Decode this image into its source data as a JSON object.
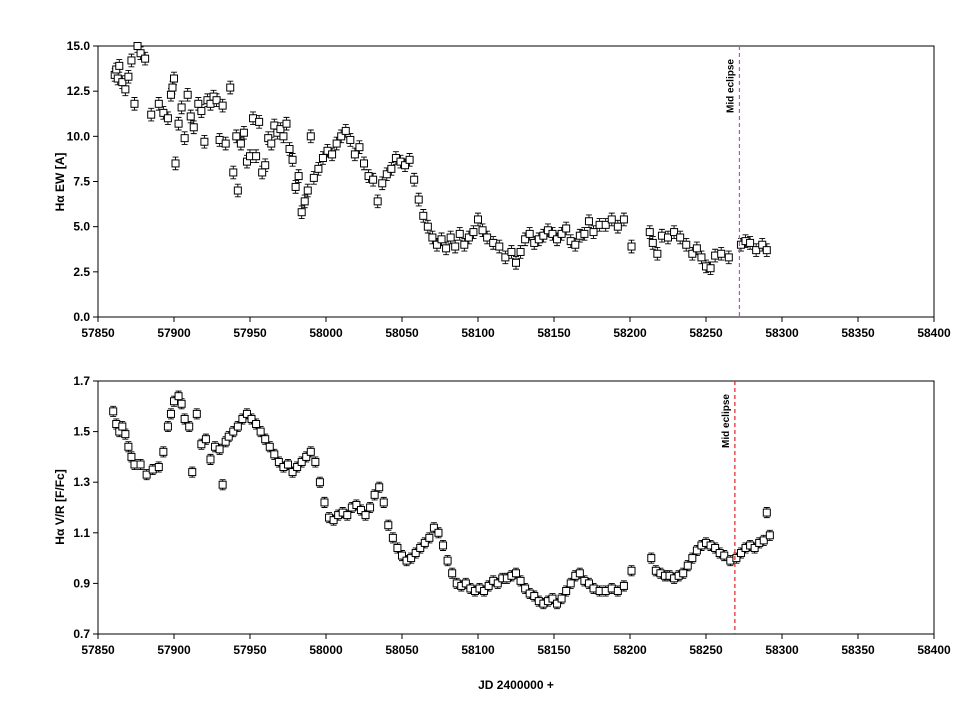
{
  "chart_data": [
    {
      "type": "scatter",
      "ylabel_main": "Hα EW [A]",
      "ylabel": "H",
      "ylabel_greek": "α",
      "ylabel_rest": " EW [A]",
      "xlim": [
        57850,
        58400
      ],
      "ylim": [
        0.0,
        15.0
      ],
      "xticks": [
        57850,
        57900,
        57950,
        58000,
        58050,
        58100,
        58150,
        58200,
        58250,
        58300,
        58350,
        58400
      ],
      "yticks": [
        0.0,
        2.5,
        5.0,
        7.5,
        10.0,
        12.5,
        15.0
      ],
      "ytick_labels": [
        "0.0",
        "2.5",
        "5.0",
        "7.5",
        "10.0",
        "12.5",
        "15.0"
      ],
      "marker": "open-square",
      "error_bars": true,
      "annotation": {
        "text": "Mid eclipse",
        "x": 58272,
        "line_color": "#cc44cc",
        "line_style": "dashed"
      },
      "points": [
        [
          57861,
          13.4
        ],
        [
          57862,
          13.7
        ],
        [
          57863,
          13.2
        ],
        [
          57864,
          13.9
        ],
        [
          57866,
          13.0
        ],
        [
          57868,
          12.6
        ],
        [
          57870,
          13.3
        ],
        [
          57872,
          14.2
        ],
        [
          57874,
          11.8
        ],
        [
          57876,
          15.0
        ],
        [
          57878,
          14.6
        ],
        [
          57881,
          14.3
        ],
        [
          57885,
          11.2
        ],
        [
          57890,
          11.8
        ],
        [
          57893,
          11.3
        ],
        [
          57896,
          11.0
        ],
        [
          57898,
          12.3
        ],
        [
          57899,
          12.7
        ],
        [
          57900,
          13.2
        ],
        [
          57901,
          8.5
        ],
        [
          57903,
          10.7
        ],
        [
          57905,
          11.6
        ],
        [
          57907,
          9.9
        ],
        [
          57909,
          12.3
        ],
        [
          57911,
          11.1
        ],
        [
          57913,
          10.5
        ],
        [
          57916,
          11.8
        ],
        [
          57918,
          11.4
        ],
        [
          57920,
          9.7
        ],
        [
          57922,
          12.0
        ],
        [
          57924,
          11.8
        ],
        [
          57926,
          12.2
        ],
        [
          57928,
          12.0
        ],
        [
          57930,
          9.8
        ],
        [
          57932,
          11.7
        ],
        [
          57934,
          9.6
        ],
        [
          57937,
          12.7
        ],
        [
          57939,
          8.0
        ],
        [
          57941,
          10.0
        ],
        [
          57942,
          7.0
        ],
        [
          57944,
          9.6
        ],
        [
          57946,
          10.2
        ],
        [
          57948,
          8.6
        ],
        [
          57950,
          8.9
        ],
        [
          57952,
          11.0
        ],
        [
          57954,
          8.9
        ],
        [
          57956,
          10.8
        ],
        [
          57958,
          8.0
        ],
        [
          57960,
          8.4
        ],
        [
          57962,
          9.9
        ],
        [
          57964,
          9.6
        ],
        [
          57966,
          10.6
        ],
        [
          57968,
          10.2
        ],
        [
          57970,
          10.4
        ],
        [
          57972,
          10.0
        ],
        [
          57974,
          10.7
        ],
        [
          57976,
          9.3
        ],
        [
          57978,
          8.7
        ],
        [
          57980,
          7.2
        ],
        [
          57982,
          7.8
        ],
        [
          57984,
          5.8
        ],
        [
          57986,
          6.4
        ],
        [
          57988,
          7.0
        ],
        [
          57990,
          10.0
        ],
        [
          57992,
          7.7
        ],
        [
          57995,
          8.2
        ],
        [
          57998,
          8.8
        ],
        [
          58001,
          9.2
        ],
        [
          58004,
          9.0
        ],
        [
          58007,
          9.6
        ],
        [
          58010,
          10.0
        ],
        [
          58013,
          10.3
        ],
        [
          58016,
          9.8
        ],
        [
          58019,
          9.0
        ],
        [
          58022,
          9.4
        ],
        [
          58025,
          8.5
        ],
        [
          58028,
          7.8
        ],
        [
          58031,
          7.6
        ],
        [
          58034,
          6.4
        ],
        [
          58037,
          7.4
        ],
        [
          58040,
          7.9
        ],
        [
          58043,
          8.2
        ],
        [
          58046,
          8.8
        ],
        [
          58049,
          8.6
        ],
        [
          58052,
          8.4
        ],
        [
          58055,
          8.7
        ],
        [
          58058,
          7.6
        ],
        [
          58061,
          6.5
        ],
        [
          58064,
          5.6
        ],
        [
          58067,
          5.0
        ],
        [
          58070,
          4.4
        ],
        [
          58073,
          4.0
        ],
        [
          58076,
          4.3
        ],
        [
          58079,
          3.8
        ],
        [
          58082,
          4.4
        ],
        [
          58085,
          3.9
        ],
        [
          58088,
          4.6
        ],
        [
          58091,
          4.0
        ],
        [
          58094,
          4.4
        ],
        [
          58097,
          4.7
        ],
        [
          58100,
          5.4
        ],
        [
          58103,
          4.8
        ],
        [
          58106,
          4.4
        ],
        [
          58110,
          4.1
        ],
        [
          58114,
          3.9
        ],
        [
          58118,
          3.3
        ],
        [
          58122,
          3.6
        ],
        [
          58125,
          3.0
        ],
        [
          58128,
          3.6
        ],
        [
          58131,
          4.3
        ],
        [
          58134,
          4.6
        ],
        [
          58137,
          4.1
        ],
        [
          58140,
          4.3
        ],
        [
          58143,
          4.5
        ],
        [
          58146,
          4.8
        ],
        [
          58149,
          4.6
        ],
        [
          58152,
          4.3
        ],
        [
          58155,
          4.6
        ],
        [
          58158,
          4.9
        ],
        [
          58161,
          4.2
        ],
        [
          58164,
          4.0
        ],
        [
          58167,
          4.5
        ],
        [
          58170,
          4.6
        ],
        [
          58173,
          5.3
        ],
        [
          58176,
          4.7
        ],
        [
          58180,
          5.1
        ],
        [
          58184,
          5.1
        ],
        [
          58188,
          5.4
        ],
        [
          58192,
          5.0
        ],
        [
          58196,
          5.4
        ],
        [
          58201,
          3.9
        ],
        [
          58213,
          4.7
        ],
        [
          58215,
          4.1
        ],
        [
          58218,
          3.5
        ],
        [
          58221,
          4.5
        ],
        [
          58225,
          4.4
        ],
        [
          58229,
          4.7
        ],
        [
          58233,
          4.4
        ],
        [
          58237,
          4.0
        ],
        [
          58241,
          3.5
        ],
        [
          58244,
          3.8
        ],
        [
          58247,
          3.3
        ],
        [
          58250,
          2.8
        ],
        [
          58253,
          2.7
        ],
        [
          58256,
          3.4
        ],
        [
          58260,
          3.5
        ],
        [
          58265,
          3.3
        ],
        [
          58273,
          4.0
        ],
        [
          58276,
          4.2
        ],
        [
          58279,
          4.1
        ],
        [
          58283,
          3.7
        ],
        [
          58287,
          4.0
        ],
        [
          58290,
          3.7
        ]
      ]
    },
    {
      "type": "scatter",
      "ylabel_main": "Hα V/R [F/Fc]",
      "ylabel": "H",
      "ylabel_greek": "α",
      "ylabel_rest": " V/R [F/Fc]",
      "xlabel": "JD 2400000 +",
      "xlim": [
        57850,
        58400
      ],
      "ylim": [
        0.7,
        1.7
      ],
      "xticks": [
        57850,
        57900,
        57950,
        58000,
        58050,
        58100,
        58150,
        58200,
        58250,
        58300,
        58350,
        58400
      ],
      "yticks": [
        0.7,
        0.9,
        1.1,
        1.3,
        1.5,
        1.7
      ],
      "ytick_labels": [
        "0.7",
        "0.9",
        "1.1",
        "1.3",
        "1.5",
        "1.7"
      ],
      "marker": "open-square",
      "error_bars": true,
      "annotation": {
        "text": "Mid eclipse",
        "x": 58269,
        "line_color": "#dd2222",
        "line_style": "dashed"
      },
      "points": [
        [
          57860,
          1.58
        ],
        [
          57862,
          1.53
        ],
        [
          57864,
          1.5
        ],
        [
          57866,
          1.52
        ],
        [
          57868,
          1.49
        ],
        [
          57870,
          1.44
        ],
        [
          57872,
          1.4
        ],
        [
          57874,
          1.37
        ],
        [
          57878,
          1.37
        ],
        [
          57882,
          1.33
        ],
        [
          57886,
          1.35
        ],
        [
          57890,
          1.36
        ],
        [
          57893,
          1.42
        ],
        [
          57896,
          1.52
        ],
        [
          57898,
          1.57
        ],
        [
          57900,
          1.62
        ],
        [
          57903,
          1.64
        ],
        [
          57905,
          1.61
        ],
        [
          57907,
          1.55
        ],
        [
          57910,
          1.52
        ],
        [
          57912,
          1.34
        ],
        [
          57915,
          1.57
        ],
        [
          57918,
          1.45
        ],
        [
          57921,
          1.47
        ],
        [
          57924,
          1.39
        ],
        [
          57927,
          1.44
        ],
        [
          57930,
          1.43
        ],
        [
          57932,
          1.29
        ],
        [
          57934,
          1.46
        ],
        [
          57936,
          1.48
        ],
        [
          57939,
          1.5
        ],
        [
          57942,
          1.52
        ],
        [
          57945,
          1.55
        ],
        [
          57948,
          1.57
        ],
        [
          57951,
          1.55
        ],
        [
          57954,
          1.53
        ],
        [
          57957,
          1.5
        ],
        [
          57960,
          1.47
        ],
        [
          57963,
          1.44
        ],
        [
          57966,
          1.41
        ],
        [
          57969,
          1.38
        ],
        [
          57972,
          1.36
        ],
        [
          57975,
          1.37
        ],
        [
          57978,
          1.34
        ],
        [
          57981,
          1.36
        ],
        [
          57984,
          1.38
        ],
        [
          57987,
          1.4
        ],
        [
          57990,
          1.42
        ],
        [
          57993,
          1.38
        ],
        [
          57996,
          1.3
        ],
        [
          57999,
          1.22
        ],
        [
          58002,
          1.16
        ],
        [
          58005,
          1.15
        ],
        [
          58008,
          1.17
        ],
        [
          58011,
          1.18
        ],
        [
          58014,
          1.17
        ],
        [
          58017,
          1.2
        ],
        [
          58020,
          1.21
        ],
        [
          58023,
          1.19
        ],
        [
          58026,
          1.17
        ],
        [
          58029,
          1.2
        ],
        [
          58032,
          1.25
        ],
        [
          58035,
          1.28
        ],
        [
          58038,
          1.22
        ],
        [
          58041,
          1.13
        ],
        [
          58044,
          1.08
        ],
        [
          58047,
          1.04
        ],
        [
          58050,
          1.01
        ],
        [
          58053,
          0.99
        ],
        [
          58056,
          1.0
        ],
        [
          58059,
          1.02
        ],
        [
          58062,
          1.04
        ],
        [
          58065,
          1.06
        ],
        [
          58068,
          1.08
        ],
        [
          58071,
          1.12
        ],
        [
          58074,
          1.1
        ],
        [
          58077,
          1.05
        ],
        [
          58080,
          0.99
        ],
        [
          58083,
          0.94
        ],
        [
          58086,
          0.9
        ],
        [
          58089,
          0.89
        ],
        [
          58092,
          0.9
        ],
        [
          58095,
          0.88
        ],
        [
          58098,
          0.87
        ],
        [
          58101,
          0.88
        ],
        [
          58104,
          0.87
        ],
        [
          58107,
          0.89
        ],
        [
          58110,
          0.91
        ],
        [
          58113,
          0.9
        ],
        [
          58116,
          0.92
        ],
        [
          58119,
          0.92
        ],
        [
          58122,
          0.93
        ],
        [
          58125,
          0.94
        ],
        [
          58128,
          0.91
        ],
        [
          58131,
          0.88
        ],
        [
          58134,
          0.86
        ],
        [
          58137,
          0.85
        ],
        [
          58140,
          0.83
        ],
        [
          58143,
          0.82
        ],
        [
          58146,
          0.83
        ],
        [
          58149,
          0.84
        ],
        [
          58152,
          0.82
        ],
        [
          58155,
          0.84
        ],
        [
          58158,
          0.87
        ],
        [
          58161,
          0.9
        ],
        [
          58164,
          0.93
        ],
        [
          58167,
          0.94
        ],
        [
          58170,
          0.91
        ],
        [
          58173,
          0.9
        ],
        [
          58176,
          0.88
        ],
        [
          58180,
          0.87
        ],
        [
          58184,
          0.87
        ],
        [
          58188,
          0.88
        ],
        [
          58192,
          0.87
        ],
        [
          58196,
          0.89
        ],
        [
          58201,
          0.95
        ],
        [
          58214,
          1.0
        ],
        [
          58217,
          0.95
        ],
        [
          58220,
          0.94
        ],
        [
          58223,
          0.93
        ],
        [
          58226,
          0.93
        ],
        [
          58229,
          0.92
        ],
        [
          58232,
          0.93
        ],
        [
          58235,
          0.94
        ],
        [
          58238,
          0.97
        ],
        [
          58241,
          1.0
        ],
        [
          58244,
          1.03
        ],
        [
          58247,
          1.05
        ],
        [
          58250,
          1.06
        ],
        [
          58253,
          1.05
        ],
        [
          58256,
          1.04
        ],
        [
          58259,
          1.02
        ],
        [
          58262,
          1.01
        ],
        [
          58266,
          0.99
        ],
        [
          58270,
          1.0
        ],
        [
          58273,
          1.02
        ],
        [
          58276,
          1.04
        ],
        [
          58279,
          1.05
        ],
        [
          58282,
          1.04
        ],
        [
          58285,
          1.06
        ],
        [
          58288,
          1.07
        ],
        [
          58290,
          1.18
        ],
        [
          58292,
          1.09
        ]
      ]
    }
  ]
}
